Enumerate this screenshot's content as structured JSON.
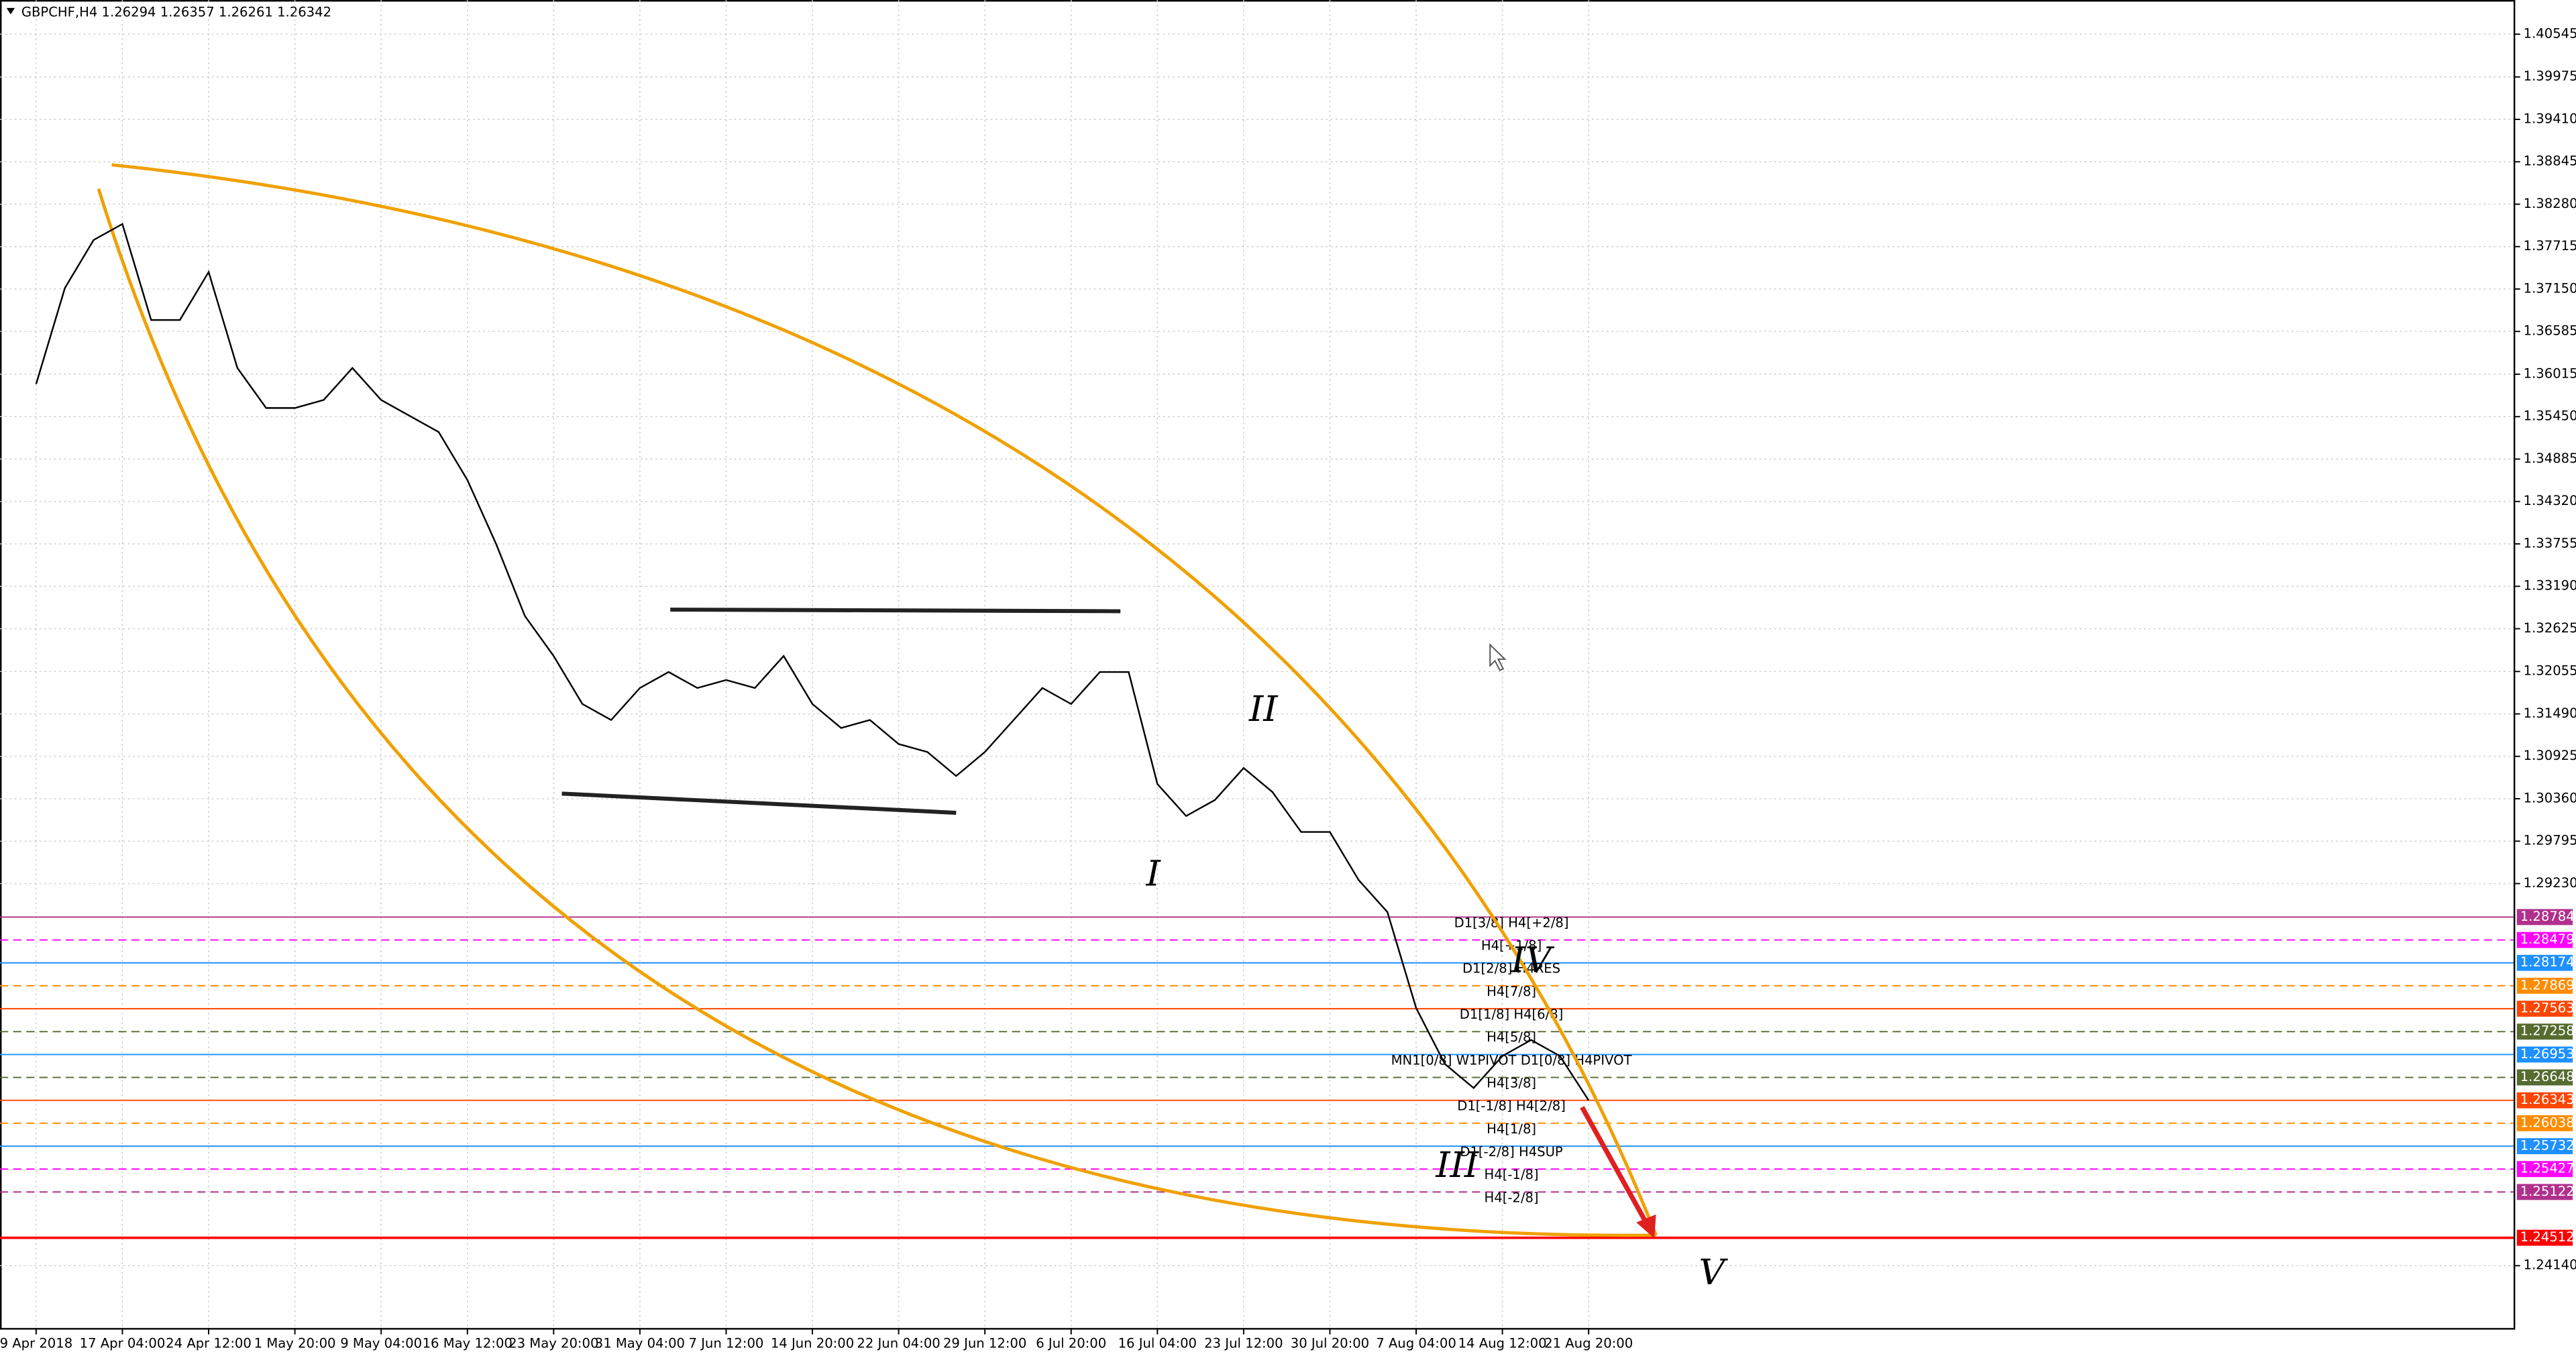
{
  "chart_data": {
    "type": "line",
    "title": "GBPCHF,H4  1.26294 1.26357 1.26261 1.26342",
    "color": "#000000",
    "categories": [
      "9 Apr 2018",
      null,
      null,
      "17 Apr 04:00",
      null,
      null,
      "24 Apr 12:00",
      null,
      null,
      "1 May 20:00",
      null,
      null,
      "9 May 04:00",
      null,
      null,
      "16 May 12:00",
      null,
      null,
      "23 May 20:00",
      null,
      null,
      "31 May 04:00",
      null,
      null,
      "7 Jun 12:00",
      null,
      null,
      "14 Jun 20:00",
      null,
      null,
      "22 Jun 04:00",
      null,
      null,
      "29 Jun 12:00",
      null,
      null,
      "6 Jul 20:00",
      null,
      null,
      "16 Jul 04:00",
      null,
      null,
      "23 Jul 12:00",
      null,
      null,
      "30 Jul 20:00",
      null,
      null,
      "7 Aug 04:00",
      null,
      null,
      "14 Aug 12:00",
      null,
      null,
      "21 Aug 20:00"
    ],
    "values": [
      1.35885,
      1.37164,
      1.37803,
      1.38016,
      1.36737,
      1.36737,
      1.37377,
      1.36098,
      1.35565,
      1.35565,
      1.35672,
      1.36098,
      1.35672,
      1.35459,
      1.35246,
      1.34606,
      1.33754,
      1.32795,
      1.32262,
      1.31622,
      1.31409,
      1.31835,
      1.32049,
      1.31835,
      1.31942,
      1.31835,
      1.32262,
      1.31622,
      1.31303,
      1.31409,
      1.3109,
      1.30983,
      1.30663,
      1.30983,
      1.31409,
      1.31835,
      1.31622,
      1.32049,
      1.32049,
      1.30557,
      1.3013,
      1.30344,
      1.3077,
      1.3045,
      1.29917,
      1.29917,
      1.29278,
      1.28852,
      1.27573,
      1.26827,
      1.26507,
      1.26934,
      1.27147,
      1.26934,
      1.26342
    ],
    "ylim": [
      1.2331,
      1.41
    ],
    "yticks": [
      1.40545,
      1.39975,
      {
        "value": 1.3941,
        "label": "1.39410"
      },
      1.38845,
      {
        "value": 1.3828,
        "label": "1.38280"
      },
      1.37715,
      {
        "value": 1.3715,
        "label": "1.37150"
      },
      1.36585,
      1.36015,
      {
        "value": 1.3545,
        "label": "1.35450"
      },
      1.34885,
      {
        "value": 1.3432,
        "label": "1.34320"
      },
      1.33755,
      {
        "value": 1.3319,
        "label": "1.33190"
      },
      1.32625,
      1.32055,
      {
        "value": 1.3149,
        "label": "1.31490"
      },
      1.30925,
      {
        "value": 1.3036,
        "label": "1.30360"
      },
      1.29795,
      {
        "value": 1.2923,
        "label": "1.29230"
      },
      {
        "value": 1.2414,
        "label": "1.24140"
      }
    ],
    "grid": true,
    "levels": [
      {
        "value": 1.28784,
        "label": "D1[3/8] H4[+2/8]",
        "color": "#b0308c",
        "dashed": false
      },
      {
        "value": 1.28479,
        "label": "H4[+1/8]",
        "color": "#ff00ff",
        "dashed": true
      },
      {
        "value": 1.28174,
        "label": "D1[2/8] H4RES",
        "color": "#1e90ff",
        "dashed": false
      },
      {
        "value": 1.27869,
        "label": "H4[7/8]",
        "color": "#ff8c00",
        "dashed": true
      },
      {
        "value": 1.27563,
        "label": "D1[1/8] H4[6/8]",
        "color": "#ff4500",
        "dashed": false
      },
      {
        "value": 1.27258,
        "label": "H4[5/8]",
        "color": "#556b2f",
        "dashed": true
      },
      {
        "value": 1.26953,
        "label": "MN1[0/8] W1PIVOT D1[0/8] H4PIVOT",
        "color": "#1e90ff",
        "dashed": false
      },
      {
        "value": 1.26648,
        "label": "H4[3/8]",
        "color": "#556b2f",
        "dashed": true
      },
      {
        "value": 1.26343,
        "label": "D1[-1/8] H4[2/8]",
        "color": "#ff4500",
        "dashed": false
      },
      {
        "value": 1.26038,
        "label": "H4[1/8]",
        "color": "#ff8c00",
        "dashed": true
      },
      {
        "value": 1.25732,
        "label": "D1[-2/8] H4SUP",
        "color": "#1e90ff",
        "dashed": false
      },
      {
        "value": 1.25427,
        "label": "H4[-1/8]",
        "color": "#ff00ff",
        "dashed": true
      },
      {
        "value": 1.25122,
        "label": "H4[-2/8]",
        "color": "#b0308c",
        "dashed": true
      },
      {
        "value": 1.24512,
        "color": "#ff0000",
        "dashed": false
      }
    ],
    "annotations": [
      "I",
      "II",
      "III",
      "IV",
      "V"
    ]
  }
}
